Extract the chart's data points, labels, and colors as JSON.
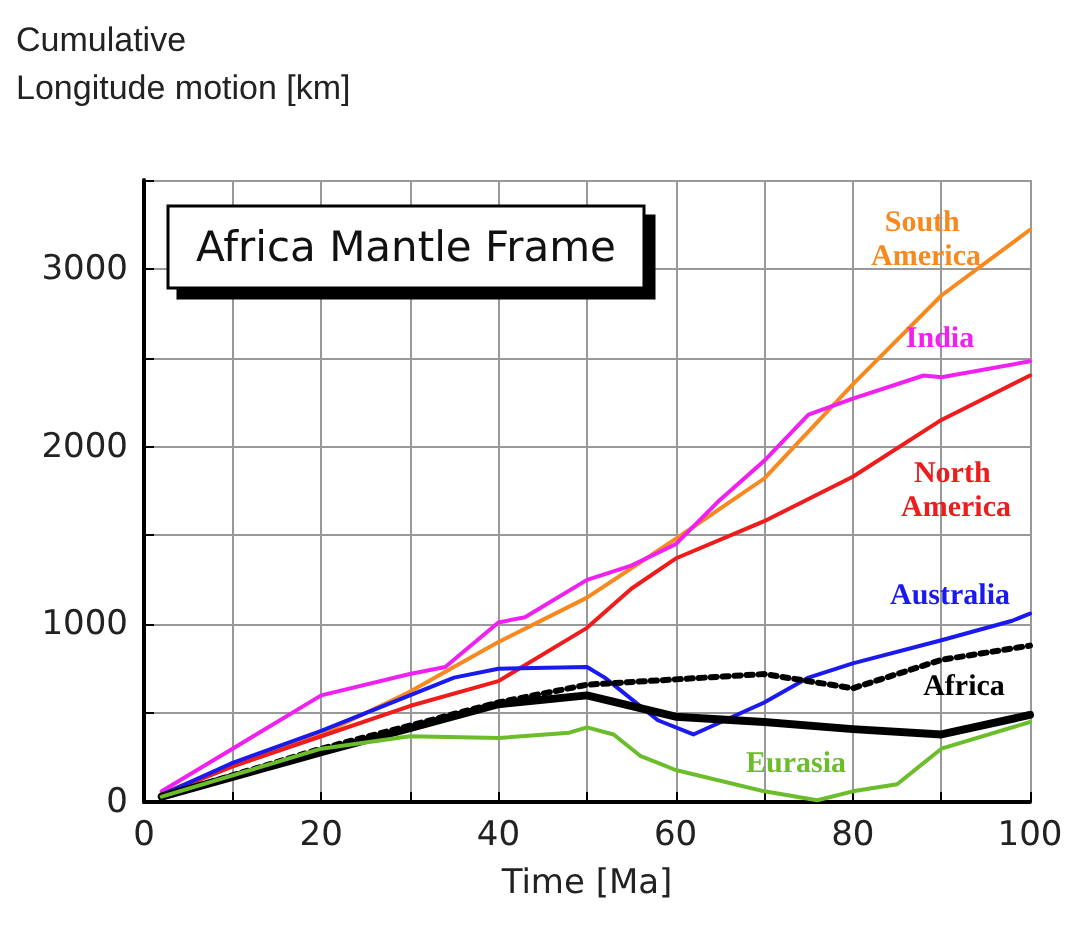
{
  "chart_data": {
    "type": "line",
    "title": "Africa Mantle Frame",
    "xlabel": "Time [Ma]",
    "ylabel": "Cumulative\nLongitude motion [km]",
    "xlim": [
      0,
      100
    ],
    "ylim": [
      0,
      3500
    ],
    "xticks": [
      0,
      {
        "value": 10,
        "label": null
      },
      20,
      {
        "value": 30,
        "label": null
      },
      40,
      {
        "value": 50,
        "label": null
      },
      60,
      {
        "value": 70,
        "label": null
      },
      80,
      {
        "value": 90,
        "label": null
      },
      100
    ],
    "yticks": [
      0,
      {
        "value": 500,
        "label": null
      },
      1000,
      {
        "value": 1500,
        "label": null
      },
      2000,
      {
        "value": 2500,
        "label": null
      },
      3000,
      {
        "value": 3500,
        "label": null
      }
    ],
    "grid": true,
    "legend": false,
    "marker": "none",
    "series": [
      {
        "name": "South America",
        "color": "#f7891f",
        "x": [
          2,
          10,
          20,
          30,
          40,
          50,
          60,
          70,
          80,
          90,
          100
        ],
        "values": [
          50,
          200,
          380,
          620,
          900,
          1150,
          1480,
          1820,
          2350,
          2850,
          3220
        ]
      },
      {
        "name": "India",
        "color": "#f020f0",
        "x": [
          2,
          10,
          20,
          30,
          34,
          40,
          43,
          50,
          55,
          60,
          65,
          70,
          75,
          80,
          88,
          90,
          100
        ],
        "values": [
          60,
          300,
          600,
          720,
          760,
          1010,
          1040,
          1250,
          1330,
          1450,
          1700,
          1920,
          2180,
          2270,
          2400,
          2390,
          2480
        ]
      },
      {
        "name": "North America",
        "color": "#ee1c1c",
        "x": [
          2,
          10,
          20,
          30,
          40,
          50,
          55,
          60,
          70,
          80,
          90,
          100
        ],
        "values": [
          40,
          200,
          370,
          540,
          680,
          980,
          1200,
          1370,
          1580,
          1830,
          2150,
          2400
        ]
      },
      {
        "name": "Australia",
        "color": "#1a1aee",
        "x": [
          2,
          10,
          20,
          30,
          35,
          40,
          50,
          52,
          58,
          62,
          70,
          75,
          80,
          90,
          98,
          100
        ],
        "values": [
          40,
          220,
          400,
          600,
          700,
          750,
          760,
          700,
          460,
          380,
          560,
          700,
          780,
          910,
          1020,
          1060
        ]
      },
      {
        "color": "#000000",
        "line_style": "dotted",
        "x": [
          2,
          20,
          40,
          50,
          60,
          70,
          80,
          90,
          100
        ],
        "values": [
          30,
          300,
          560,
          660,
          690,
          720,
          640,
          800,
          880
        ]
      },
      {
        "name": "Africa",
        "color": "#000000",
        "x": [
          2,
          20,
          40,
          50,
          60,
          70,
          80,
          90,
          100
        ],
        "values": [
          30,
          280,
          550,
          600,
          480,
          450,
          410,
          380,
          490
        ]
      },
      {
        "name": "Eurasia",
        "color": "#6cbd2c",
        "x": [
          2,
          20,
          30,
          40,
          48,
          50,
          53,
          56,
          60,
          70,
          76,
          80,
          85,
          90,
          100
        ],
        "values": [
          30,
          300,
          370,
          360,
          390,
          420,
          380,
          260,
          180,
          60,
          10,
          60,
          100,
          300,
          450
        ]
      }
    ]
  }
}
